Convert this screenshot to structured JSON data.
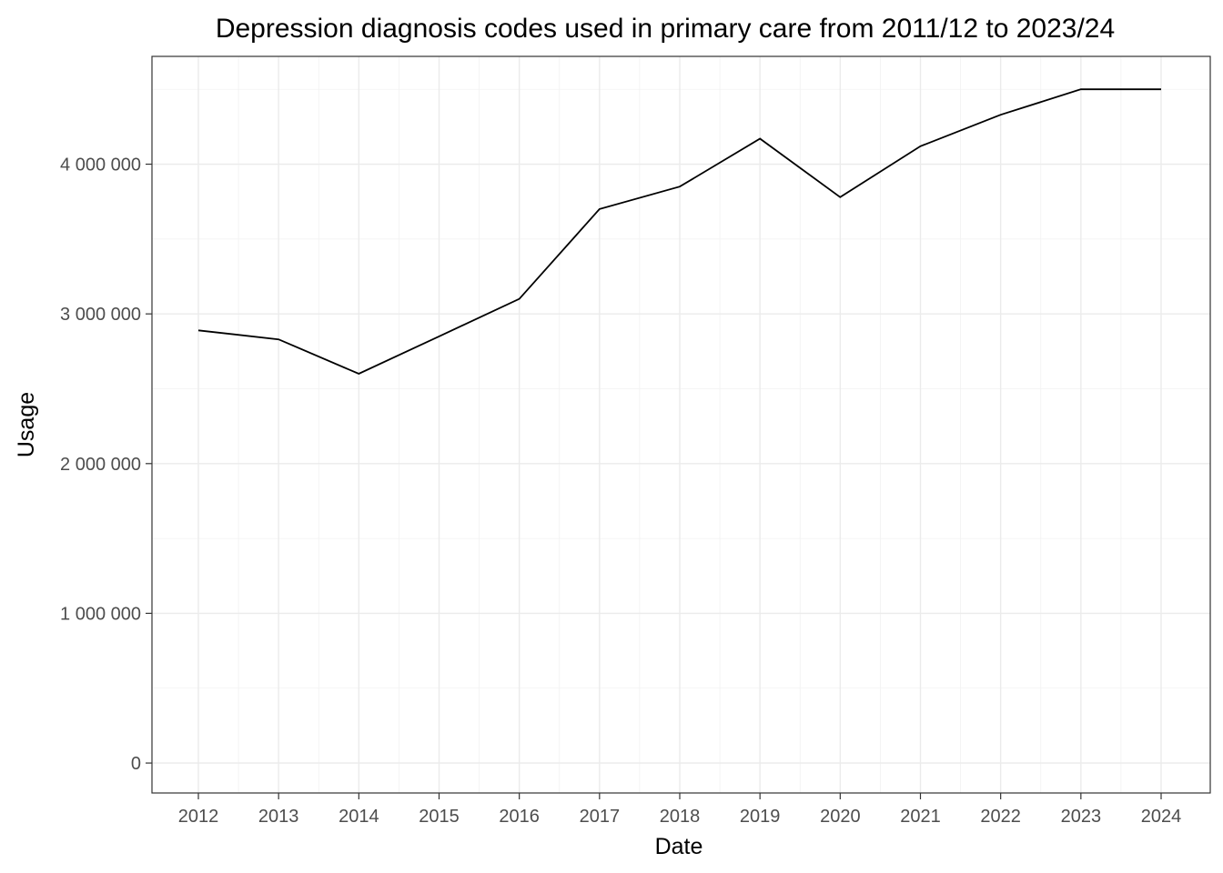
{
  "chart_data": {
    "type": "line",
    "title": "Depression diagnosis codes used in primary care from 2011/12 to 2023/24",
    "xlabel": "Date",
    "ylabel": "Usage",
    "x": [
      "2012",
      "2013",
      "2014",
      "2015",
      "2016",
      "2017",
      "2018",
      "2019",
      "2020",
      "2021",
      "2022",
      "2023",
      "2024"
    ],
    "series": [
      {
        "values": [
          2890000,
          2830000,
          2600000,
          2850000,
          3100000,
          3700000,
          3850000,
          4170000,
          3780000,
          4120000,
          4330000,
          4500000,
          4500000
        ]
      }
    ],
    "yticks": [
      0,
      1000000,
      2000000,
      3000000,
      4000000
    ],
    "ytick_labels": [
      "0",
      "1 000 000",
      "2 000 000",
      "3 000 000",
      "4 000 000"
    ],
    "ylim": [
      -200000,
      4720000
    ],
    "grid": true,
    "legend": "none",
    "line_color": "#000000"
  }
}
